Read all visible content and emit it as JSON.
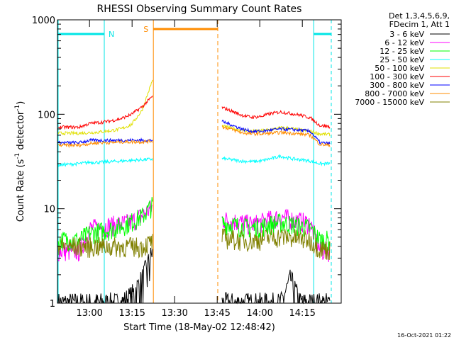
{
  "chart_data": {
    "type": "line",
    "title": "RHESSI Observing Summary Count Rates",
    "xlabel_prefix": "Start Time (",
    "xlabel_date": "18-May-02 12:48:42",
    "xlabel_suffix": ")",
    "ylabel_main": "Count Rate (s",
    "ylabel_sup": "-1",
    "ylabel_mid": " detector",
    "ylabel_sup2": "-1",
    "ylabel_end": ")",
    "y_scale": "log",
    "ylim": [
      1,
      1000
    ],
    "xlim_minutes": [
      0,
      100
    ],
    "x_tick_minutes": [
      11.3,
      26.3,
      41.3,
      56.3,
      71.3,
      86.3
    ],
    "x_tick_labels": [
      "13:00",
      "13:15",
      "13:30",
      "13:45",
      "14:00",
      "14:15"
    ],
    "y_tick_values": [
      1,
      10,
      100,
      1000
    ],
    "y_tick_labels": [
      "1",
      "10",
      "100",
      "1000"
    ],
    "detector_info": [
      "Det 1,3,4,5,6,9,",
      "FDecim 1, Att 1"
    ],
    "footer_date": "16-Oct-2021 01:22",
    "night": [
      {
        "label": "N",
        "start": 16.5,
        "end": 0,
        "color": "#00e5e5"
      },
      {
        "label": "",
        "start": 90.3,
        "end": 106,
        "color": "#00e5e5"
      }
    ],
    "saa": {
      "label": "S",
      "start": 33.8,
      "end": 56.5,
      "color": "#ff8c00"
    },
    "data_gap": [
      33.8,
      56.5
    ],
    "series": [
      {
        "name": "3 - 6 keV",
        "color": "#000000",
        "before": [
          1,
          1,
          1,
          1,
          1,
          1,
          1,
          1.2,
          1.8,
          3.5
        ],
        "after": [
          1,
          1,
          1,
          1,
          1,
          1,
          1,
          1.8,
          1,
          1,
          1,
          1
        ]
      },
      {
        "name": "6 - 12 keV",
        "color": "#ff00ff",
        "before": [
          3.6,
          3.6,
          3.6,
          6.2,
          6.4,
          6.7,
          6.9,
          7.3,
          8.5,
          10.5
        ],
        "after": [
          7.8,
          7.5,
          7.2,
          6.8,
          7.2,
          7.8,
          8.2,
          7.8,
          7.4,
          7.0,
          3.6,
          3.6
        ]
      },
      {
        "name": "12 - 25 keV",
        "color": "#00ff00",
        "before": [
          4.7,
          4.7,
          4.7,
          5.5,
          5.8,
          6.1,
          6.6,
          7.3,
          8.3,
          11.0
        ],
        "after": [
          7.1,
          6.8,
          6.5,
          6.3,
          6.5,
          6.9,
          7.2,
          6.9,
          6.6,
          6.2,
          4.7,
          4.7
        ]
      },
      {
        "name": "25 - 50 keV",
        "color": "#00ffff",
        "before": [
          29,
          29.5,
          30,
          31,
          31,
          31.5,
          32,
          32.5,
          33,
          33.5
        ],
        "after": [
          34,
          33,
          32,
          31.5,
          32,
          34,
          36,
          34,
          33,
          32,
          30,
          30
        ]
      },
      {
        "name": "50 - 100 keV",
        "color": "#e0e000",
        "before": [
          63,
          63,
          63,
          64,
          65,
          67,
          70,
          78,
          110,
          230
        ],
        "after": [
          75,
          71,
          68,
          66,
          67,
          69,
          72,
          71,
          68,
          66,
          62,
          61
        ]
      },
      {
        "name": "100 - 300 keV",
        "color": "#ff0000",
        "before": [
          73,
          73,
          73,
          80,
          82,
          85,
          90,
          100,
          120,
          155
        ],
        "after": [
          118,
          108,
          98,
          93,
          95,
          102,
          106,
          102,
          98,
          92,
          76,
          74
        ]
      },
      {
        "name": "300 - 800 keV",
        "color": "#0000ff",
        "before": [
          50,
          50,
          50,
          53,
          53,
          53,
          53,
          53,
          53,
          53
        ],
        "after": [
          84,
          77,
          70,
          66,
          66,
          68,
          70,
          69,
          68,
          66,
          50,
          49
        ]
      },
      {
        "name": "800 - 7000 keV",
        "color": "#ff8c00",
        "before": [
          47,
          47,
          47,
          49,
          50,
          50,
          51,
          51,
          51,
          52
        ],
        "after": [
          74,
          69,
          64,
          62,
          62,
          63,
          64,
          63,
          62,
          60,
          48,
          47
        ]
      },
      {
        "name": "7000 - 15000 keV",
        "color": "#808000",
        "before": [
          4.0,
          4.0,
          4.0,
          4.0,
          4.0,
          4.0,
          4.0,
          4.0,
          4.0,
          4.5
        ],
        "after": [
          5.0,
          4.8,
          4.7,
          4.6,
          4.8,
          5.0,
          5.1,
          5.0,
          4.8,
          4.7,
          3.8,
          3.7
        ]
      }
    ]
  }
}
